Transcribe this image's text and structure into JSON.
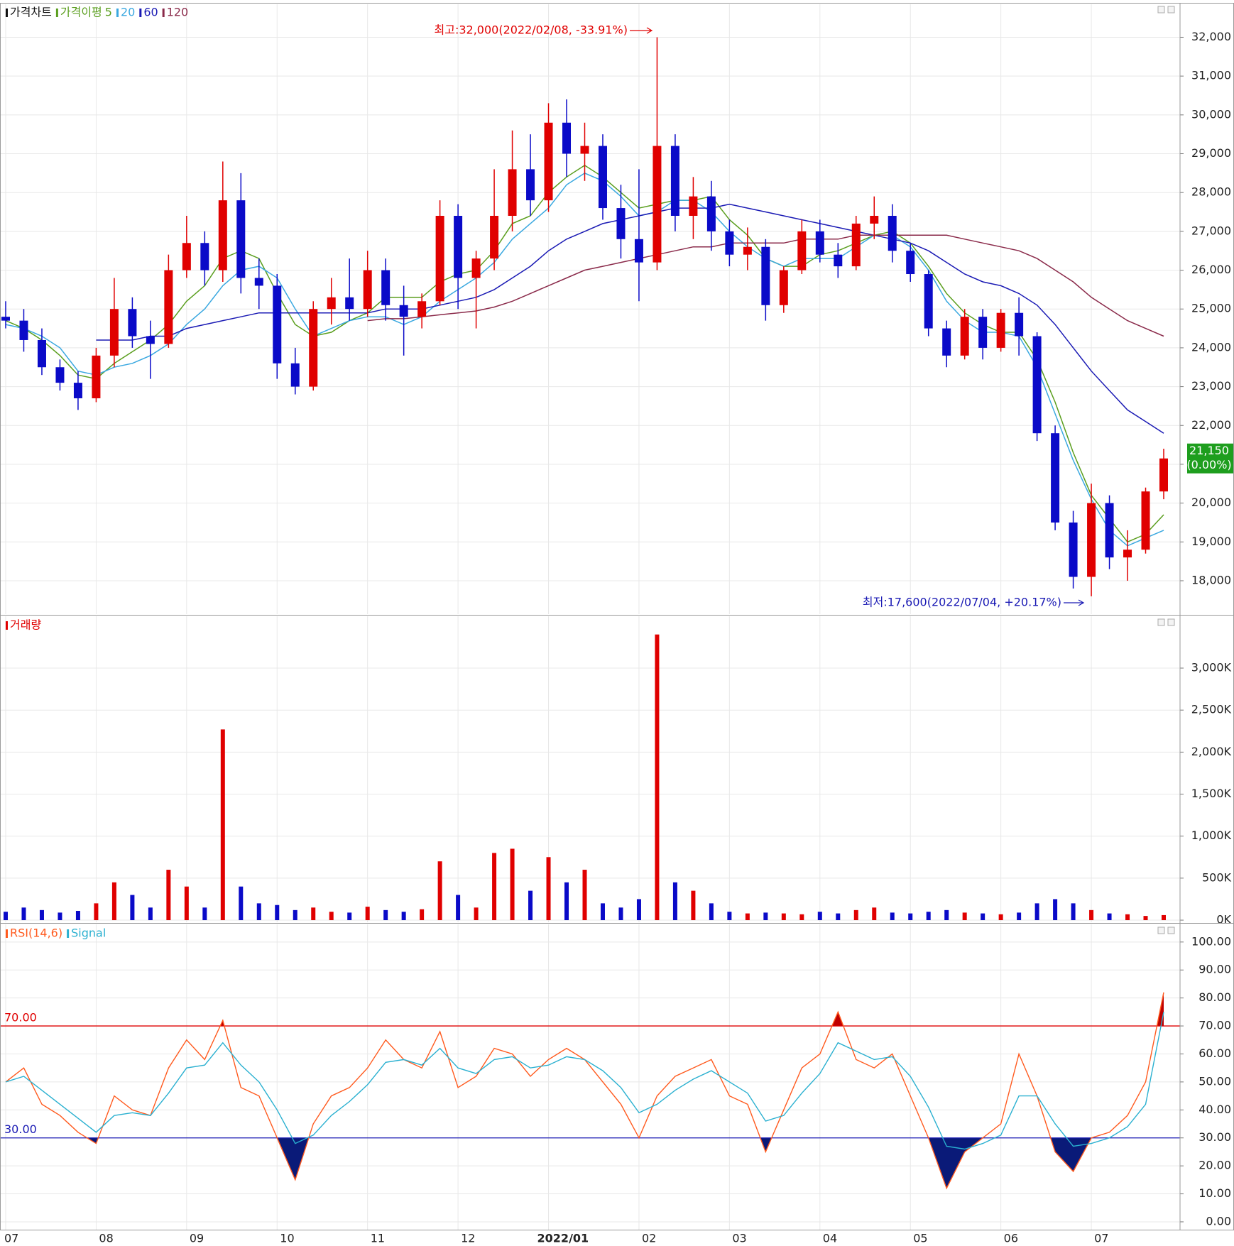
{
  "chart_data": [
    {
      "type": "candlestick",
      "title": "가격차트",
      "ma_title": "가격이평",
      "categories": [
        "07",
        null,
        null,
        null,
        null,
        "08",
        null,
        null,
        null,
        null,
        "09",
        null,
        null,
        null,
        null,
        "10",
        null,
        null,
        null,
        null,
        "11",
        null,
        null,
        null,
        null,
        "12",
        null,
        null,
        null,
        null,
        "2022/01",
        null,
        null,
        null,
        null,
        "02",
        null,
        null,
        null,
        null,
        "03",
        null,
        null,
        null,
        null,
        "04",
        null,
        null,
        null,
        null,
        "05",
        null,
        null,
        null,
        null,
        "06",
        null,
        null,
        null,
        null,
        "07",
        null,
        null,
        null,
        null
      ],
      "open": [
        24800,
        24700,
        24200,
        23500,
        23100,
        22700,
        23800,
        25000,
        24300,
        24100,
        26000,
        26700,
        26000,
        27800,
        25800,
        25600,
        23600,
        23000,
        25000,
        25300,
        25000,
        26000,
        25100,
        24800,
        25200,
        27400,
        25800,
        26300,
        27400,
        28600,
        27800,
        29800,
        29000,
        29200,
        27600,
        26800,
        26200,
        29200,
        27400,
        27900,
        27000,
        26400,
        26600,
        25100,
        26000,
        27000,
        26400,
        26100,
        27200,
        27400,
        26500,
        25900,
        24500,
        23800,
        24800,
        24000,
        24900,
        24300,
        21800,
        19500,
        18100,
        20000,
        18600,
        18800,
        20300
      ],
      "high": [
        25200,
        25000,
        24500,
        23700,
        23400,
        24000,
        25800,
        25300,
        24700,
        26400,
        27400,
        27000,
        28800,
        28500,
        26300,
        25900,
        24000,
        25200,
        25800,
        26300,
        26500,
        26300,
        25600,
        25400,
        27800,
        27700,
        26500,
        28600,
        29600,
        29500,
        30300,
        30400,
        29800,
        29500,
        28200,
        28600,
        32000,
        29500,
        28400,
        28300,
        27300,
        27100,
        26800,
        26100,
        27300,
        27300,
        26700,
        27400,
        27900,
        27700,
        26700,
        26000,
        24700,
        25000,
        25000,
        25000,
        25300,
        24400,
        22000,
        19800,
        20500,
        20200,
        19300,
        20400,
        21400
      ],
      "low": [
        24500,
        23900,
        23300,
        22900,
        22400,
        22600,
        23500,
        24000,
        23200,
        24000,
        25800,
        25600,
        25700,
        25400,
        25000,
        23200,
        22800,
        22900,
        24600,
        24700,
        24800,
        24700,
        23800,
        24500,
        25100,
        25000,
        24500,
        26000,
        27000,
        27400,
        27500,
        28400,
        28300,
        27300,
        26300,
        25200,
        26000,
        27000,
        26800,
        26500,
        26100,
        26000,
        24700,
        24900,
        25900,
        26200,
        25800,
        26000,
        26800,
        26200,
        25700,
        24300,
        23500,
        23700,
        23700,
        23900,
        23800,
        21600,
        19300,
        17800,
        17600,
        18300,
        18000,
        18700,
        20100
      ],
      "close": [
        24700,
        24200,
        23500,
        23100,
        22700,
        23800,
        25000,
        24300,
        24100,
        26000,
        26700,
        26000,
        27800,
        25800,
        25600,
        23600,
        23000,
        25000,
        25300,
        25000,
        26000,
        25100,
        24800,
        25200,
        27400,
        25800,
        26300,
        27400,
        28600,
        27800,
        29800,
        29000,
        29200,
        27600,
        26800,
        26200,
        29200,
        27400,
        27900,
        27000,
        26400,
        26600,
        25100,
        26000,
        27000,
        26400,
        26100,
        27200,
        27400,
        26500,
        25900,
        24500,
        23800,
        24800,
        24000,
        24900,
        24300,
        21800,
        19500,
        18100,
        20000,
        18600,
        18800,
        20300,
        21150
      ],
      "up_color": "#e00000",
      "down_color": "#0a0ac8",
      "series": [
        {
          "name": "5",
          "color": "#5a9e1e",
          "values": [
            24700,
            24500,
            24200,
            23800,
            23300,
            23200,
            23600,
            23900,
            24200,
            24600,
            25200,
            25600,
            26300,
            26500,
            26300,
            25400,
            24600,
            24300,
            24400,
            24700,
            24900,
            25300,
            25300,
            25300,
            25700,
            25900,
            26000,
            26500,
            27200,
            27400,
            28000,
            28400,
            28700,
            28400,
            28000,
            27600,
            27700,
            27800,
            27800,
            27900,
            27300,
            26900,
            26300,
            26100,
            26100,
            26400,
            26500,
            26700,
            26900,
            27000,
            26700,
            26100,
            25400,
            24900,
            24600,
            24400,
            24400,
            23700,
            22600,
            21300,
            20200,
            19600,
            19000,
            19200,
            19700
          ]
        },
        {
          "name": "20",
          "color": "#3aa8e0",
          "values": [
            24600,
            24500,
            24300,
            24000,
            23400,
            23300,
            23500,
            23600,
            23800,
            24100,
            24600,
            25000,
            25600,
            26000,
            26100,
            25800,
            25000,
            24300,
            24500,
            24700,
            24800,
            24800,
            24600,
            24800,
            25200,
            25500,
            25800,
            26200,
            26800,
            27200,
            27600,
            28200,
            28500,
            28300,
            27900,
            27400,
            27500,
            27800,
            27800,
            27500,
            27000,
            26600,
            26300,
            26100,
            26300,
            26300,
            26300,
            26600,
            26900,
            26900,
            26600,
            26000,
            25200,
            24700,
            24400,
            24400,
            24300,
            23500,
            22300,
            21100,
            20100,
            19300,
            18900,
            19100,
            19300
          ]
        },
        {
          "name": "60",
          "color": "#1a1ab4",
          "values": [
            null,
            null,
            null,
            null,
            null,
            24200,
            24200,
            24200,
            24300,
            24300,
            24500,
            24600,
            24700,
            24800,
            24900,
            24900,
            24900,
            24900,
            24900,
            24900,
            24900,
            25000,
            25000,
            25000,
            25100,
            25200,
            25300,
            25500,
            25800,
            26100,
            26500,
            26800,
            27000,
            27200,
            27300,
            27400,
            27500,
            27600,
            27600,
            27600,
            27700,
            27600,
            27500,
            27400,
            27300,
            27200,
            27100,
            27000,
            26900,
            26800,
            26700,
            26500,
            26200,
            25900,
            25700,
            25600,
            25400,
            25100,
            24600,
            24000,
            23400,
            22900,
            22400,
            22100,
            21800
          ]
        },
        {
          "name": "120",
          "color": "#8a2a4a",
          "values": [
            null,
            null,
            null,
            null,
            null,
            null,
            null,
            null,
            null,
            null,
            null,
            null,
            null,
            null,
            null,
            null,
            null,
            null,
            null,
            null,
            24700,
            24750,
            24750,
            24800,
            24850,
            24900,
            24950,
            25050,
            25200,
            25400,
            25600,
            25800,
            26000,
            26100,
            26200,
            26300,
            26400,
            26500,
            26600,
            26600,
            26700,
            26700,
            26700,
            26700,
            26800,
            26800,
            26800,
            26900,
            26900,
            26900,
            26900,
            26900,
            26900,
            26800,
            26700,
            26600,
            26500,
            26300,
            26000,
            25700,
            25300,
            25000,
            24700,
            24500,
            24300
          ]
        }
      ],
      "ylim": [
        17140,
        32850
      ],
      "yticks": [
        {
          "value": 18000,
          "label": "18,000"
        },
        {
          "value": 19000,
          "label": "19,000"
        },
        {
          "value": 20000,
          "label": "20,000"
        },
        {
          "value": 21000,
          "label": "21,000"
        },
        {
          "value": 22000,
          "label": "22,000"
        },
        {
          "value": 23000,
          "label": "23,000"
        },
        {
          "value": 24000,
          "label": "24,000"
        },
        {
          "value": 25000,
          "label": "25,000"
        },
        {
          "value": 26000,
          "label": "26,000"
        },
        {
          "value": 27000,
          "label": "27,000"
        },
        {
          "value": 28000,
          "label": "28,000"
        },
        {
          "value": 29000,
          "label": "29,000"
        },
        {
          "value": 30000,
          "label": "30,000"
        },
        {
          "value": 31000,
          "label": "31,000"
        },
        {
          "value": 32000,
          "label": "32,000"
        }
      ],
      "last_price": {
        "value": 21150,
        "label": "21,150"
      },
      "last_change": {
        "value": 0,
        "label": "(0.00%)"
      },
      "last_color": "#1e9e1e",
      "annotations": [
        {
          "text": "최고:32,000(2022/02/08, -33.91%)",
          "color": "#e00000"
        },
        {
          "text": "최저:17,600(2022/07/04, +20.17%)",
          "color": "#1a1ab4"
        }
      ]
    },
    {
      "type": "bar",
      "title": "거래량",
      "title_color": "#e00000",
      "values": [
        100000,
        150000,
        120000,
        90000,
        110000,
        200000,
        450000,
        300000,
        150000,
        600000,
        400000,
        150000,
        2270000,
        400000,
        200000,
        180000,
        120000,
        150000,
        100000,
        90000,
        160000,
        120000,
        100000,
        130000,
        700000,
        300000,
        150000,
        800000,
        850000,
        350000,
        750000,
        450000,
        600000,
        200000,
        150000,
        250000,
        3400000,
        450000,
        350000,
        200000,
        100000,
        80000,
        90000,
        80000,
        70000,
        100000,
        80000,
        120000,
        150000,
        90000,
        80000,
        100000,
        120000,
        90000,
        80000,
        70000,
        90000,
        200000,
        250000,
        200000,
        120000,
        80000,
        70000,
        50000,
        60000
      ],
      "ylim": [
        -25000,
        3617000
      ],
      "yticks": [
        {
          "value": 0,
          "label": "0K"
        },
        {
          "value": 500000,
          "label": "500K"
        },
        {
          "value": 1000000,
          "label": "1,000K"
        },
        {
          "value": 1500000,
          "label": "1,500K"
        },
        {
          "value": 2000000,
          "label": "2,000K"
        },
        {
          "value": 2500000,
          "label": "2,500K"
        },
        {
          "value": 3000000,
          "label": "3,000K"
        }
      ]
    },
    {
      "type": "line",
      "series": [
        {
          "name": "RSI(14,6)",
          "color": "#ff5a1e",
          "values": [
            50,
            55,
            42,
            38,
            32,
            28,
            45,
            40,
            38,
            55,
            65,
            58,
            72,
            48,
            45,
            30,
            15,
            35,
            45,
            48,
            55,
            65,
            58,
            55,
            68,
            48,
            52,
            62,
            60,
            52,
            58,
            62,
            58,
            50,
            42,
            30,
            45,
            52,
            55,
            58,
            45,
            42,
            25,
            40,
            55,
            60,
            75,
            58,
            55,
            60,
            45,
            30,
            12,
            25,
            30,
            35,
            60,
            45,
            25,
            18,
            30,
            32,
            38,
            50,
            82
          ]
        },
        {
          "name": "Signal",
          "color": "#2ab0d0",
          "values": [
            50,
            52,
            47,
            42,
            37,
            32,
            38,
            39,
            38,
            46,
            55,
            56,
            64,
            56,
            50,
            40,
            28,
            31,
            38,
            43,
            49,
            57,
            58,
            56,
            62,
            55,
            53,
            58,
            59,
            55,
            56,
            59,
            58,
            54,
            48,
            39,
            42,
            47,
            51,
            54,
            50,
            46,
            36,
            38,
            46,
            53,
            64,
            61,
            58,
            59,
            52,
            41,
            27,
            26,
            28,
            31,
            45,
            45,
            35,
            27,
            28,
            30,
            34,
            42,
            75
          ]
        }
      ],
      "hlines": [
        {
          "value": 70,
          "label": "70.00",
          "color": "#e00000"
        },
        {
          "value": 30,
          "label": "30.00",
          "color": "#1a1ab4"
        }
      ],
      "fill_above_color": "#c00000",
      "fill_below_color": "#0a1a78",
      "ylim": [
        -2.8,
        106.3
      ],
      "yticks": [
        {
          "value": 0,
          "label": "0.00"
        },
        {
          "value": 10,
          "label": "10.00"
        },
        {
          "value": 20,
          "label": "20.00"
        },
        {
          "value": 30,
          "label": "30.00"
        },
        {
          "value": 40,
          "label": "40.00"
        },
        {
          "value": 50,
          "label": "50.00"
        },
        {
          "value": 60,
          "label": "60.00"
        },
        {
          "value": 70,
          "label": "70.00"
        },
        {
          "value": 80,
          "label": "80.00"
        },
        {
          "value": 90,
          "label": "90.00"
        },
        {
          "value": 100,
          "label": "100.00"
        }
      ]
    }
  ]
}
